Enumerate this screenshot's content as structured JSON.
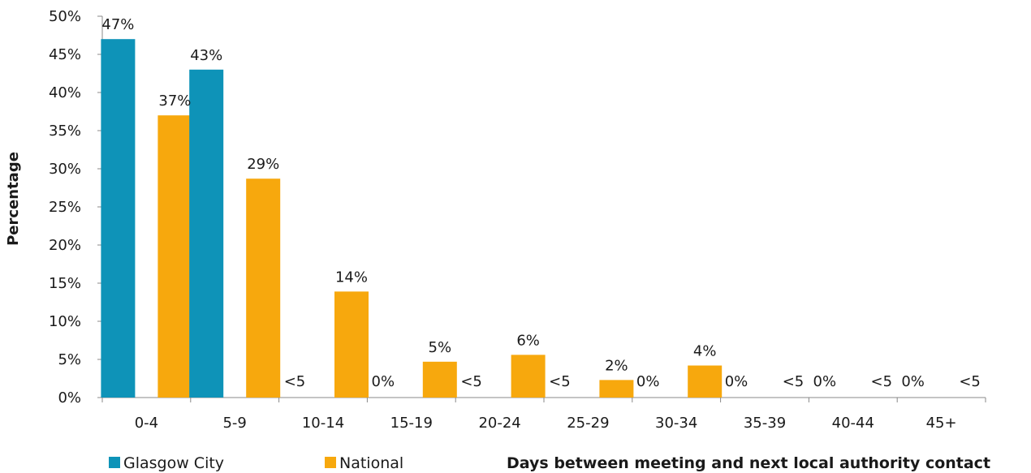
{
  "chart_data": {
    "type": "bar",
    "categories": [
      "0-4",
      "5-9",
      "10-14",
      "15-19",
      "20-24",
      "25-29",
      "30-34",
      "35-39",
      "40-44",
      "45+"
    ],
    "series": [
      {
        "name": "Glasgow City",
        "color": "#0e93b8",
        "values": [
          47,
          43,
          null,
          0,
          null,
          null,
          0,
          0,
          0,
          0
        ],
        "labels": [
          "47%",
          "43%",
          "<5",
          "0%",
          "<5",
          "<5",
          "0%",
          "0%",
          "0%",
          "0%"
        ]
      },
      {
        "name": "National",
        "color": "#f7a80d",
        "values": [
          37,
          28.7,
          13.9,
          4.7,
          5.6,
          2.3,
          4.2,
          null,
          null,
          null
        ],
        "labels": [
          "37%",
          "29%",
          "14%",
          "5%",
          "6%",
          "2%",
          "4%",
          "<5",
          "<5",
          "<5"
        ]
      }
    ],
    "ylabel": "Percentage",
    "xlabel": "Days between meeting and next local authority contact",
    "ylim": [
      0,
      50
    ],
    "yticks": [
      "0%",
      "5%",
      "10%",
      "15%",
      "20%",
      "25%",
      "30%",
      "35%",
      "40%",
      "45%",
      "50%"
    ],
    "grid": false,
    "legend": "bottom-left"
  }
}
